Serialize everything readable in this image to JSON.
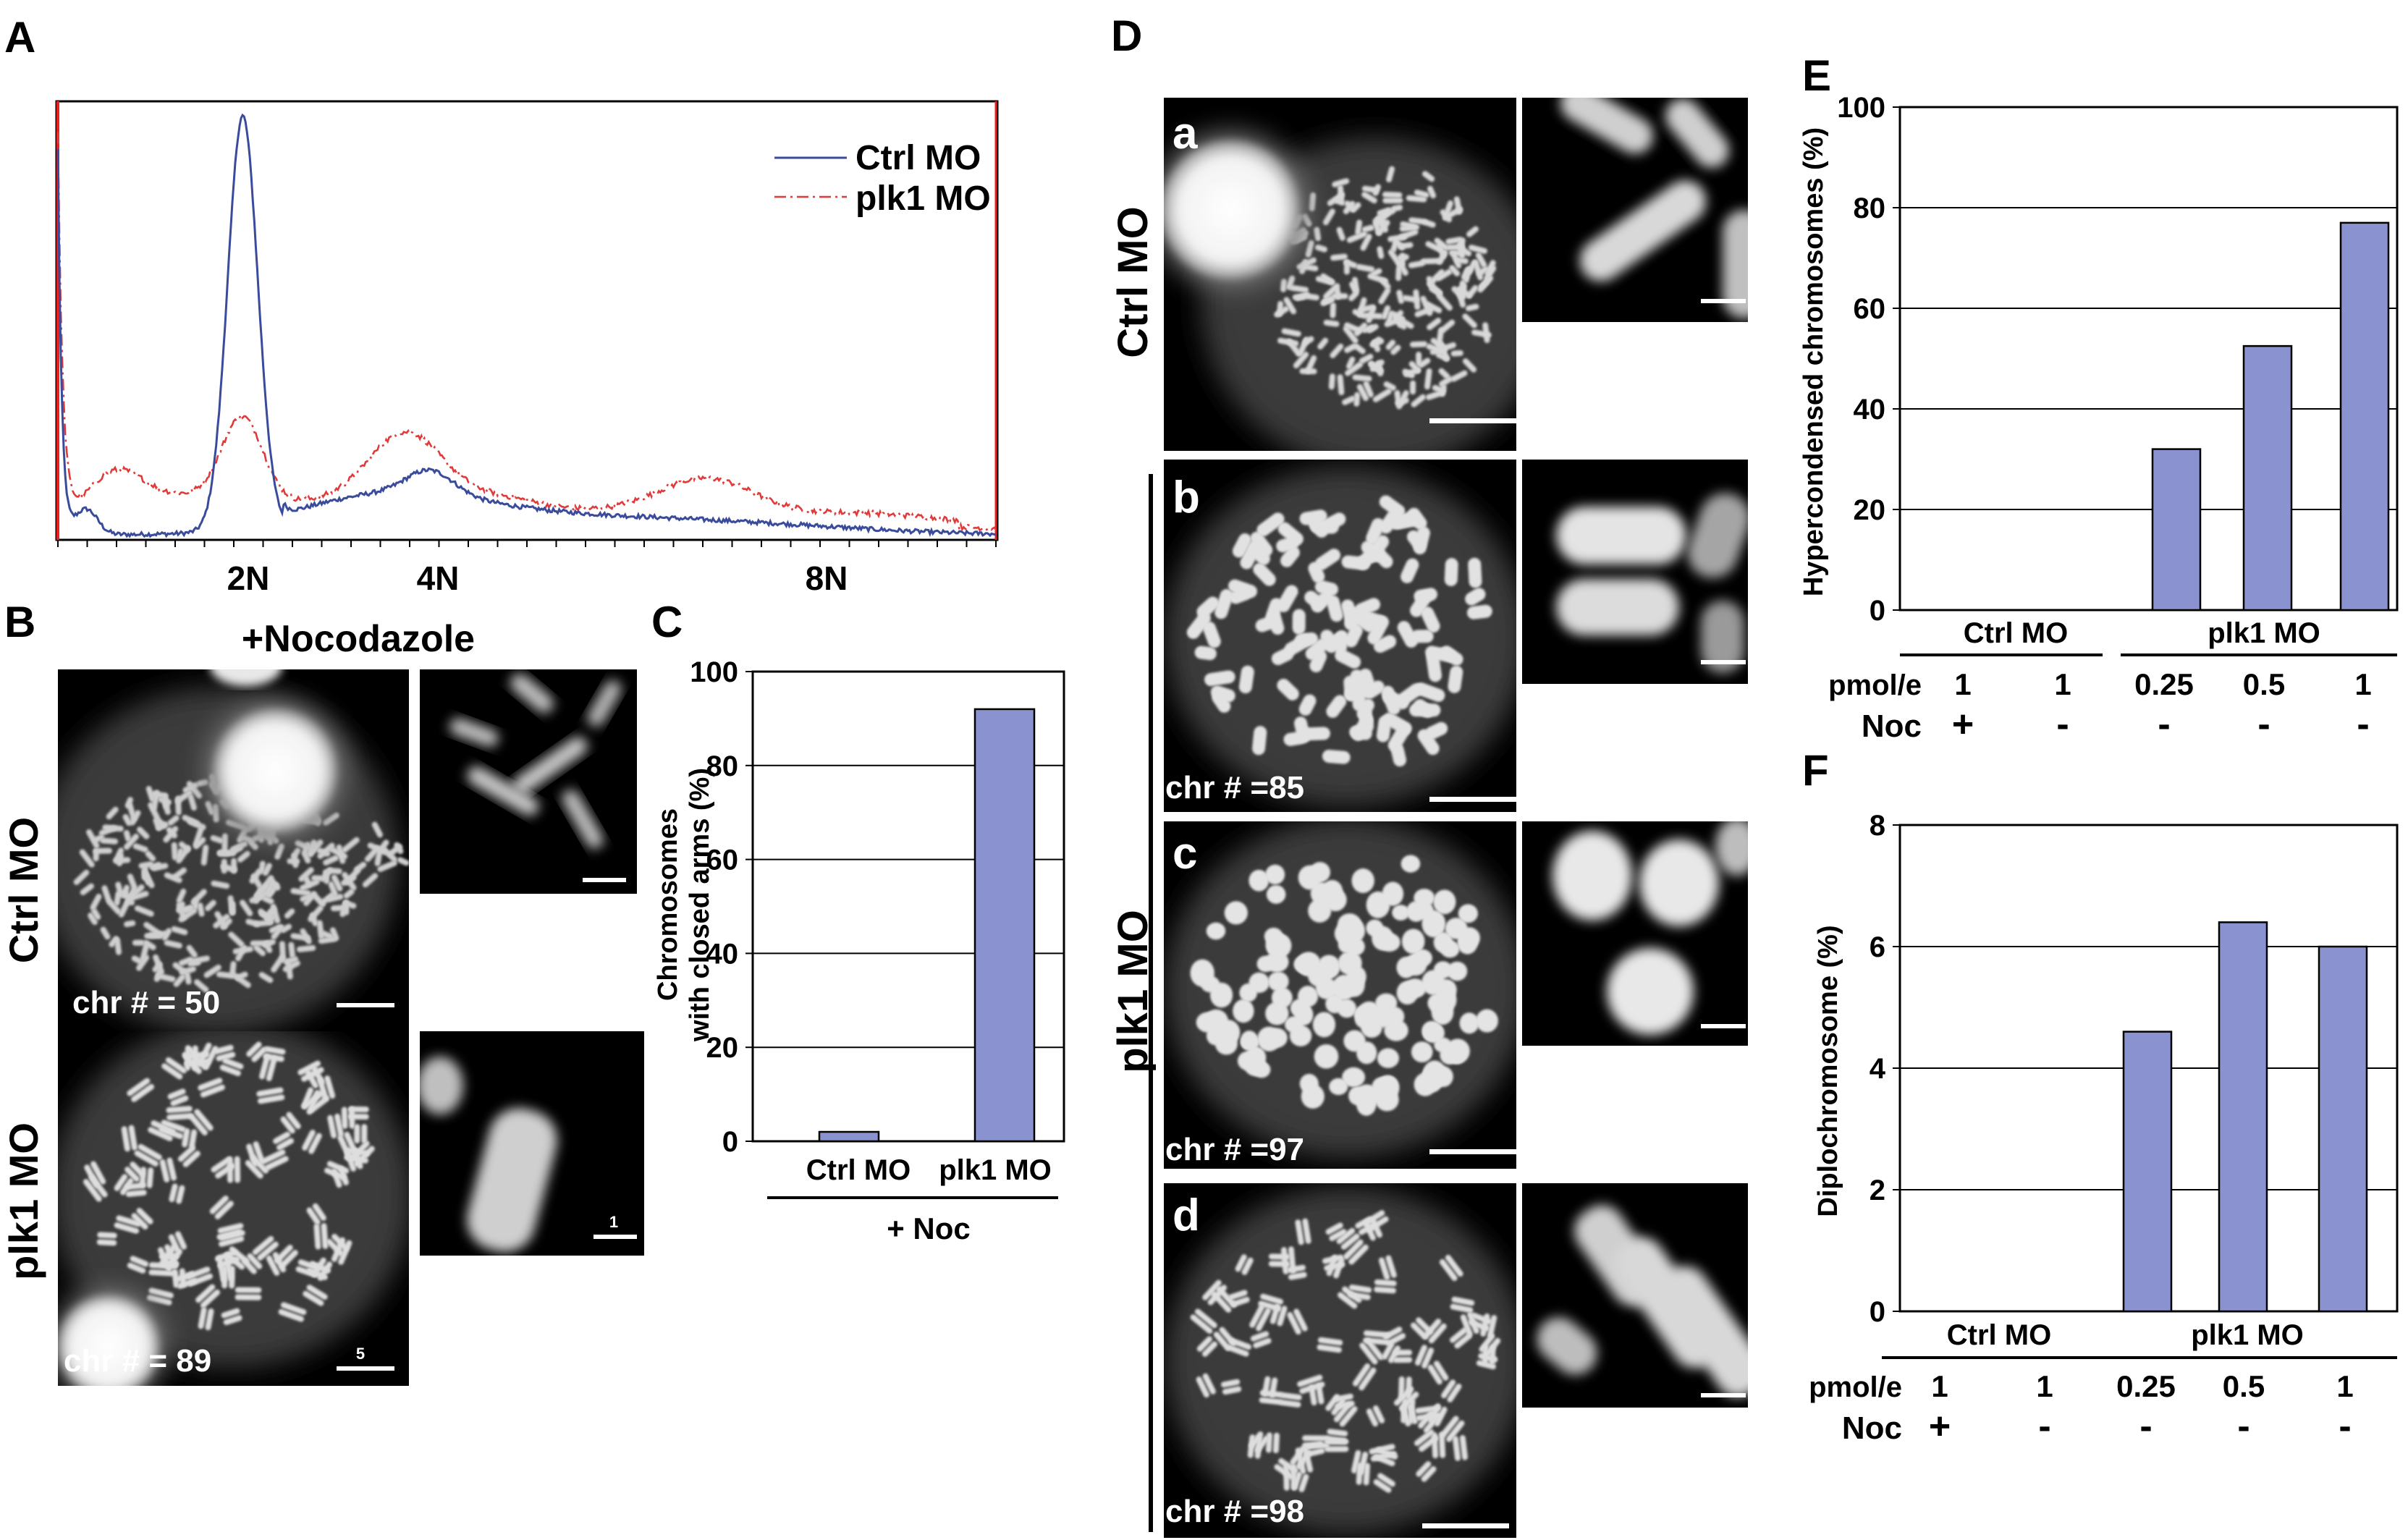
{
  "panel_letters": {
    "A": "A",
    "B": "B",
    "C": "C",
    "D": "D",
    "E": "E",
    "F": "F"
  },
  "panel_a": {
    "x_ticks": [
      "2N",
      "4N",
      "8N"
    ],
    "legend": [
      "Ctrl MO",
      "plk1 MO"
    ],
    "colors": {
      "ctrl": "#3a4b9b",
      "plk1": "#e03a3a",
      "axis_start": "#e82020"
    }
  },
  "panel_b": {
    "heading": "+Nocodazole",
    "row_labels": [
      "Ctrl MO",
      "plk1 MO"
    ],
    "counts": [
      "chr # = 50",
      "chr # = 89"
    ],
    "scale_labels": [
      "5",
      "1"
    ]
  },
  "panel_d": {
    "row_labels": [
      "Ctrl MO",
      "plk1 MO"
    ],
    "sub_letters": [
      "a",
      "b",
      "c",
      "d"
    ],
    "counts": [
      "chr # =85",
      "chr # =97",
      "chr # =98"
    ]
  },
  "chart_data": [
    {
      "id": "C",
      "type": "bar",
      "ylabel_lines": [
        "Chromosomes",
        "with closed arms (%)"
      ],
      "categories": [
        "Ctrl MO",
        "plk1 MO"
      ],
      "values": [
        2,
        92
      ],
      "ylim": [
        0,
        100
      ],
      "yticks": [
        "0",
        "20",
        "40",
        "60",
        "80",
        "100"
      ],
      "footer": "+ Noc",
      "bar_color": "#8a93cf"
    },
    {
      "id": "E",
      "type": "bar",
      "ylabel": "Hypercondensed chromosomes (%)",
      "values": [
        0,
        0,
        32,
        52.5,
        77
      ],
      "ylim": [
        0,
        100
      ],
      "yticks": [
        "0",
        "20",
        "40",
        "60",
        "80",
        "100"
      ],
      "groups": [
        "Ctrl MO",
        "plk1 MO"
      ],
      "row_labels": [
        "pmol/e",
        "Noc"
      ],
      "pmol": [
        "1",
        "1",
        "0.25",
        "0.5",
        "1"
      ],
      "noc": [
        "+",
        "-",
        "-",
        "-",
        "-"
      ],
      "bar_color": "#8a93cf"
    },
    {
      "id": "F",
      "type": "bar",
      "ylabel": "Diplochromosome (%)",
      "values": [
        0,
        0,
        4.6,
        6.4,
        6.0
      ],
      "ylim": [
        0,
        8
      ],
      "yticks": [
        "0",
        "2",
        "4",
        "6",
        "8"
      ],
      "groups": [
        "Ctrl MO",
        "plk1 MO"
      ],
      "row_labels": [
        "pmol/e",
        "Noc"
      ],
      "pmol": [
        "1",
        "1",
        "0.25",
        "0.5",
        "1"
      ],
      "noc": [
        "+",
        "-",
        "-",
        "-",
        "-"
      ],
      "bar_color": "#8a93cf"
    }
  ]
}
